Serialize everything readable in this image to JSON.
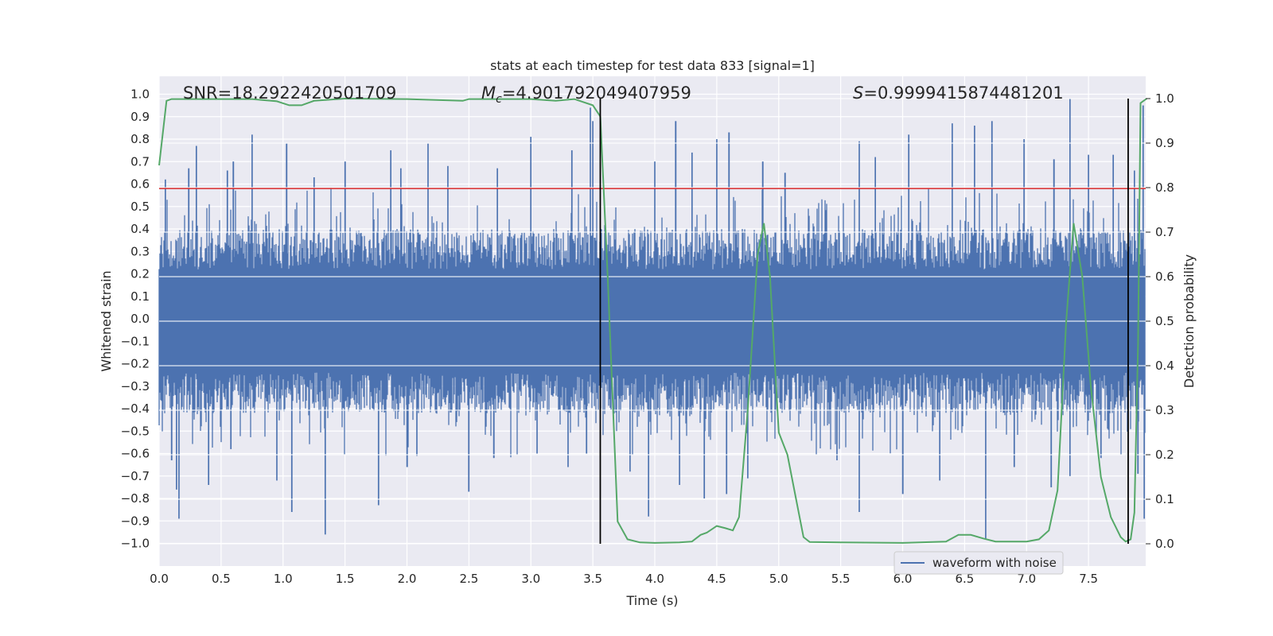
{
  "chart_data": {
    "type": "line",
    "title": "stats at each timestep for test data 833 [signal=1]",
    "xlabel": "Time (s)",
    "ylabel": "Whitened strain",
    "ylabel_right": "Detection probability",
    "xlim": [
      0.0,
      8.0
    ],
    "ylim": [
      -1.1,
      1.1
    ],
    "ylim_right": [
      -0.05,
      1.02
    ],
    "x_ticks": [
      "0.0",
      "0.5",
      "1.0",
      "1.5",
      "2.0",
      "2.5",
      "3.0",
      "3.5",
      "4.0",
      "4.5",
      "5.0",
      "5.5",
      "6.0",
      "6.5",
      "7.0",
      "7.5"
    ],
    "y_ticks": [
      "1.0",
      "0.9",
      "0.8",
      "0.7",
      "0.6",
      "0.5",
      "0.4",
      "0.3",
      "0.2",
      "0.1",
      "0.0",
      "−0.1",
      "−0.2",
      "−0.3",
      "−0.4",
      "−0.5",
      "−0.6",
      "−0.7",
      "−0.8",
      "−0.9",
      "−1.0"
    ],
    "y_ticks_right": [
      "1.0",
      "0.9",
      "0.8",
      "0.7",
      "0.6",
      "0.5",
      "0.4",
      "0.3",
      "0.2",
      "0.1",
      "0.0"
    ],
    "annotations": {
      "snr": "SNR=18.2922420501709",
      "mc_symbol": "M",
      "mc_sub": "c",
      "mc_value": "=4.901792049407959",
      "s_symbol": "S",
      "s_value": "=0.9999415874481201"
    },
    "threshold": {
      "y": 0.58,
      "color": "#d62728"
    },
    "vertical_lines": [
      3.56,
      7.82
    ],
    "grid": true,
    "legend": {
      "label": "waveform with noise",
      "placement": "lower-right"
    },
    "waveform": {
      "name": "waveform with noise",
      "color": "#4c72b0",
      "typical_envelope_max": 0.4,
      "typical_envelope_min": -0.42,
      "peaks": [
        [
          0.05,
          0.62
        ],
        [
          0.24,
          0.67
        ],
        [
          0.3,
          0.77
        ],
        [
          0.55,
          0.66
        ],
        [
          0.6,
          0.7
        ],
        [
          0.75,
          0.82
        ],
        [
          1.03,
          0.78
        ],
        [
          1.25,
          0.63
        ],
        [
          1.5,
          0.7
        ],
        [
          1.87,
          0.75
        ],
        [
          1.95,
          0.67
        ],
        [
          2.17,
          0.78
        ],
        [
          2.33,
          0.68
        ],
        [
          2.73,
          0.67
        ],
        [
          3.0,
          0.81
        ],
        [
          3.33,
          0.75
        ],
        [
          3.48,
          0.94
        ],
        [
          3.5,
          0.88
        ],
        [
          4.0,
          0.7
        ],
        [
          4.17,
          0.88
        ],
        [
          4.3,
          0.74
        ],
        [
          4.5,
          0.8
        ],
        [
          4.6,
          0.83
        ],
        [
          4.87,
          0.7
        ],
        [
          5.05,
          0.65
        ],
        [
          5.65,
          0.79
        ],
        [
          5.78,
          0.72
        ],
        [
          6.05,
          0.82
        ],
        [
          6.4,
          0.87
        ],
        [
          6.58,
          0.86
        ],
        [
          6.72,
          0.88
        ],
        [
          6.98,
          0.8
        ],
        [
          7.22,
          0.71
        ],
        [
          7.35,
          0.98
        ],
        [
          7.5,
          0.73
        ],
        [
          7.7,
          0.73
        ],
        [
          7.87,
          0.66
        ],
        [
          7.94,
          0.95
        ]
      ],
      "troughs": [
        [
          0.1,
          -0.63
        ],
        [
          0.14,
          -0.76
        ],
        [
          0.16,
          -0.89
        ],
        [
          0.4,
          -0.74
        ],
        [
          0.58,
          -0.58
        ],
        [
          0.95,
          -0.72
        ],
        [
          1.07,
          -0.86
        ],
        [
          1.34,
          -0.96
        ],
        [
          1.77,
          -0.83
        ],
        [
          2.0,
          -0.66
        ],
        [
          2.08,
          -0.61
        ],
        [
          2.5,
          -0.77
        ],
        [
          2.7,
          -0.62
        ],
        [
          3.05,
          -0.6
        ],
        [
          3.3,
          -0.66
        ],
        [
          3.45,
          -0.6
        ],
        [
          3.8,
          -0.68
        ],
        [
          3.95,
          -0.88
        ],
        [
          4.2,
          -0.74
        ],
        [
          4.4,
          -0.8
        ],
        [
          4.58,
          -0.78
        ],
        [
          4.75,
          -0.71
        ],
        [
          5.47,
          -0.63
        ],
        [
          5.65,
          -0.86
        ],
        [
          6.0,
          -0.78
        ],
        [
          6.3,
          -0.72
        ],
        [
          6.67,
          -0.98
        ],
        [
          6.9,
          -0.66
        ],
        [
          7.2,
          -0.75
        ],
        [
          7.35,
          -0.7
        ],
        [
          7.6,
          -0.62
        ],
        [
          7.9,
          -0.69
        ],
        [
          7.95,
          -0.89
        ]
      ]
    },
    "detection_probability": {
      "color": "#55a868",
      "points": [
        [
          0.0,
          0.85
        ],
        [
          0.06,
          0.995
        ],
        [
          0.1,
          0.999
        ],
        [
          0.3,
          0.999
        ],
        [
          0.5,
          0.999
        ],
        [
          0.75,
          0.999
        ],
        [
          0.95,
          0.994
        ],
        [
          1.05,
          0.985
        ],
        [
          1.15,
          0.985
        ],
        [
          1.25,
          0.995
        ],
        [
          1.5,
          1.0
        ],
        [
          2.0,
          0.999
        ],
        [
          2.45,
          0.995
        ],
        [
          2.5,
          0.999
        ],
        [
          3.0,
          0.999
        ],
        [
          3.2,
          0.995
        ],
        [
          3.35,
          0.999
        ],
        [
          3.5,
          0.985
        ],
        [
          3.56,
          0.96
        ],
        [
          3.62,
          0.6
        ],
        [
          3.7,
          0.05
        ],
        [
          3.78,
          0.01
        ],
        [
          3.88,
          0.003
        ],
        [
          4.0,
          0.002
        ],
        [
          4.2,
          0.003
        ],
        [
          4.3,
          0.005
        ],
        [
          4.37,
          0.02
        ],
        [
          4.42,
          0.025
        ],
        [
          4.5,
          0.04
        ],
        [
          4.57,
          0.035
        ],
        [
          4.63,
          0.03
        ],
        [
          4.68,
          0.06
        ],
        [
          4.75,
          0.3
        ],
        [
          4.83,
          0.65
        ],
        [
          4.88,
          0.72
        ],
        [
          4.93,
          0.6
        ],
        [
          5.0,
          0.25
        ],
        [
          5.07,
          0.2
        ],
        [
          5.14,
          0.1
        ],
        [
          5.2,
          0.015
        ],
        [
          5.25,
          0.004
        ],
        [
          5.5,
          0.003
        ],
        [
          6.0,
          0.002
        ],
        [
          6.35,
          0.005
        ],
        [
          6.45,
          0.02
        ],
        [
          6.55,
          0.02
        ],
        [
          6.65,
          0.012
        ],
        [
          6.75,
          0.005
        ],
        [
          7.0,
          0.005
        ],
        [
          7.1,
          0.01
        ],
        [
          7.18,
          0.03
        ],
        [
          7.25,
          0.12
        ],
        [
          7.32,
          0.5
        ],
        [
          7.38,
          0.72
        ],
        [
          7.45,
          0.6
        ],
        [
          7.52,
          0.35
        ],
        [
          7.6,
          0.15
        ],
        [
          7.68,
          0.06
        ],
        [
          7.76,
          0.015
        ],
        [
          7.8,
          0.005
        ],
        [
          7.84,
          0.01
        ],
        [
          7.87,
          0.07
        ],
        [
          7.9,
          0.45
        ],
        [
          7.92,
          0.99
        ],
        [
          7.97,
          1.0
        ]
      ]
    }
  }
}
